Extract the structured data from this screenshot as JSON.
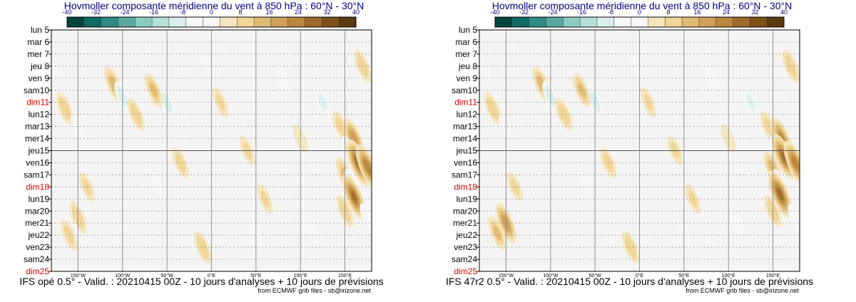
{
  "chart_data": [
    {
      "type": "heatmap",
      "title": "Hovmoller composante méridienne du vent à 850 hPa : 60°N - 30°N",
      "footer": "IFS opé 0.5° - Valid. : 20210415 00Z - 10 jours d'analyses + 10 jours de prévisions",
      "credit": "from ECMWF grib files - sb@irizone.net",
      "colorbar_ticks": [
        "-40",
        "-32",
        "-24",
        "-16",
        "-8",
        "0",
        "8",
        "16",
        "24",
        "32",
        "40"
      ],
      "x_ticks": [
        "150°W",
        "100°W",
        "50°W",
        "0°E",
        "50°E",
        "100°E",
        "150°E"
      ],
      "x_range": [
        -180,
        180
      ],
      "y_labels": [
        "lun 5",
        "mar 6",
        "mer 7",
        "jeu 8",
        "ven 9",
        "sam10",
        "dim11",
        "lun12",
        "mar13",
        "mer14",
        "jeu15",
        "ven16",
        "sam17",
        "dim18",
        "lun19",
        "mar20",
        "mer21",
        "jeu22",
        "ven23",
        "sam24",
        "dim25"
      ],
      "weekend_labels": [
        "dim11",
        "dim18",
        "dim25"
      ],
      "analysis_split_label": "jeu15",
      "blobs": [
        {
          "lon": -175,
          "day": 3,
          "v": -8
        },
        {
          "lon": -165,
          "day": 6.5,
          "v": 14
        },
        {
          "lon": -150,
          "day": 8,
          "v": -6
        },
        {
          "lon": -140,
          "day": 13,
          "v": 10
        },
        {
          "lon": -150,
          "day": 15.5,
          "v": 14
        },
        {
          "lon": -160,
          "day": 17,
          "v": 12
        },
        {
          "lon": -110,
          "day": 4.5,
          "v": 18
        },
        {
          "lon": -100,
          "day": 5.5,
          "v": -12
        },
        {
          "lon": -85,
          "day": 7,
          "v": 14
        },
        {
          "lon": -50,
          "day": 6,
          "v": -12
        },
        {
          "lon": -65,
          "day": 5,
          "v": 16
        },
        {
          "lon": -35,
          "day": 11,
          "v": 12
        },
        {
          "lon": -60,
          "day": 13,
          "v": -6
        },
        {
          "lon": -10,
          "day": 18,
          "v": 14
        },
        {
          "lon": -5,
          "day": 3,
          "v": -6
        },
        {
          "lon": 10,
          "day": 6,
          "v": 10
        },
        {
          "lon": 40,
          "day": 10,
          "v": 10
        },
        {
          "lon": 50,
          "day": 17,
          "v": -8
        },
        {
          "lon": 60,
          "day": 14,
          "v": 10
        },
        {
          "lon": 80,
          "day": 4,
          "v": -8
        },
        {
          "lon": 100,
          "day": 9,
          "v": 8
        },
        {
          "lon": 110,
          "day": 16,
          "v": -8
        },
        {
          "lon": 125,
          "day": 6,
          "v": -10
        },
        {
          "lon": 145,
          "day": 8,
          "v": 12
        },
        {
          "lon": 160,
          "day": 9,
          "v": 24
        },
        {
          "lon": 155,
          "day": 10,
          "v": -10
        },
        {
          "lon": 150,
          "day": 12,
          "v": 16
        },
        {
          "lon": 165,
          "day": 11,
          "v": 32
        },
        {
          "lon": 175,
          "day": 11.3,
          "v": 28
        },
        {
          "lon": 158,
          "day": 12.8,
          "v": -12
        },
        {
          "lon": 160,
          "day": 13.8,
          "v": 30
        },
        {
          "lon": 150,
          "day": 15,
          "v": 14
        },
        {
          "lon": 170,
          "day": 3,
          "v": 14
        },
        {
          "lon": 175,
          "day": 15.5,
          "v": -8
        }
      ]
    },
    {
      "type": "heatmap",
      "title": "Hovmoller composante méridienne du vent à 850 hPa : 60°N - 30°N",
      "footer": "IFS 47r2 0.5° - Valid. : 20210415 00Z - 10 jours d'analyses + 10 jours de prévisions",
      "credit": "from ECMWF grib files - sb@irizone.net",
      "colorbar_ticks": [
        "-40",
        "-32",
        "-24",
        "-16",
        "-8",
        "0",
        "8",
        "16",
        "24",
        "32",
        "40"
      ],
      "x_ticks": [
        "150°W",
        "100°W",
        "50°W",
        "0°E",
        "50°E",
        "100°E",
        "150°E"
      ],
      "x_range": [
        -180,
        180
      ],
      "y_labels": [
        "lun 5",
        "mar 6",
        "mer 7",
        "jeu 8",
        "ven 9",
        "sam10",
        "dim11",
        "lun12",
        "mar13",
        "mer14",
        "jeu15",
        "ven16",
        "sam17",
        "dim18",
        "lun19",
        "mar20",
        "mer21",
        "jeu22",
        "ven23",
        "sam24",
        "dim25"
      ],
      "weekend_labels": [
        "dim11",
        "dim18",
        "dim25"
      ],
      "analysis_split_label": "jeu15",
      "blobs": [
        {
          "lon": -175,
          "day": 3,
          "v": -8
        },
        {
          "lon": -165,
          "day": 6.5,
          "v": 14
        },
        {
          "lon": -150,
          "day": 8,
          "v": -6
        },
        {
          "lon": -140,
          "day": 13,
          "v": 10
        },
        {
          "lon": -150,
          "day": 16,
          "v": 24
        },
        {
          "lon": -160,
          "day": 16.8,
          "v": 16
        },
        {
          "lon": -110,
          "day": 4.5,
          "v": 18
        },
        {
          "lon": -100,
          "day": 5.5,
          "v": -12
        },
        {
          "lon": -85,
          "day": 7,
          "v": 14
        },
        {
          "lon": -50,
          "day": 6,
          "v": -12
        },
        {
          "lon": -65,
          "day": 5,
          "v": 16
        },
        {
          "lon": -35,
          "day": 11,
          "v": 12
        },
        {
          "lon": -60,
          "day": 13,
          "v": -6
        },
        {
          "lon": -10,
          "day": 18,
          "v": 14
        },
        {
          "lon": -5,
          "day": 3,
          "v": -6
        },
        {
          "lon": 10,
          "day": 6,
          "v": 10
        },
        {
          "lon": 40,
          "day": 10,
          "v": 10
        },
        {
          "lon": 50,
          "day": 17,
          "v": -8
        },
        {
          "lon": 60,
          "day": 14,
          "v": 10
        },
        {
          "lon": 80,
          "day": 4,
          "v": -8
        },
        {
          "lon": 100,
          "day": 9,
          "v": 8
        },
        {
          "lon": 110,
          "day": 16,
          "v": -8
        },
        {
          "lon": 125,
          "day": 6,
          "v": -10
        },
        {
          "lon": 145,
          "day": 8,
          "v": 12
        },
        {
          "lon": 160,
          "day": 9,
          "v": 26
        },
        {
          "lon": 155,
          "day": 10,
          "v": -10
        },
        {
          "lon": 150,
          "day": 11.5,
          "v": 18
        },
        {
          "lon": 162,
          "day": 10.5,
          "v": 30
        },
        {
          "lon": 175,
          "day": 11,
          "v": 28
        },
        {
          "lon": 158,
          "day": 12.8,
          "v": -12
        },
        {
          "lon": 158,
          "day": 13.6,
          "v": 32
        },
        {
          "lon": 150,
          "day": 15,
          "v": 14
        },
        {
          "lon": 170,
          "day": 3,
          "v": 14
        },
        {
          "lon": 175,
          "day": 15.5,
          "v": -8
        }
      ]
    }
  ],
  "colors": {
    "palette": [
      "#01463e",
      "#0f6a63",
      "#2e8a84",
      "#59a8a2",
      "#89cbc3",
      "#b6e0da",
      "#d9f0ec",
      "#f7f7f7",
      "#f7f7f7",
      "#f6e6bf",
      "#f0d598",
      "#e0bb73",
      "#cfa05a",
      "#b9873e",
      "#9f6a2c",
      "#7d511a",
      "#5a3a0e"
    ],
    "title": "#000080",
    "weekend": "#dd0000",
    "grid": "#888888",
    "frame": "#000000"
  }
}
